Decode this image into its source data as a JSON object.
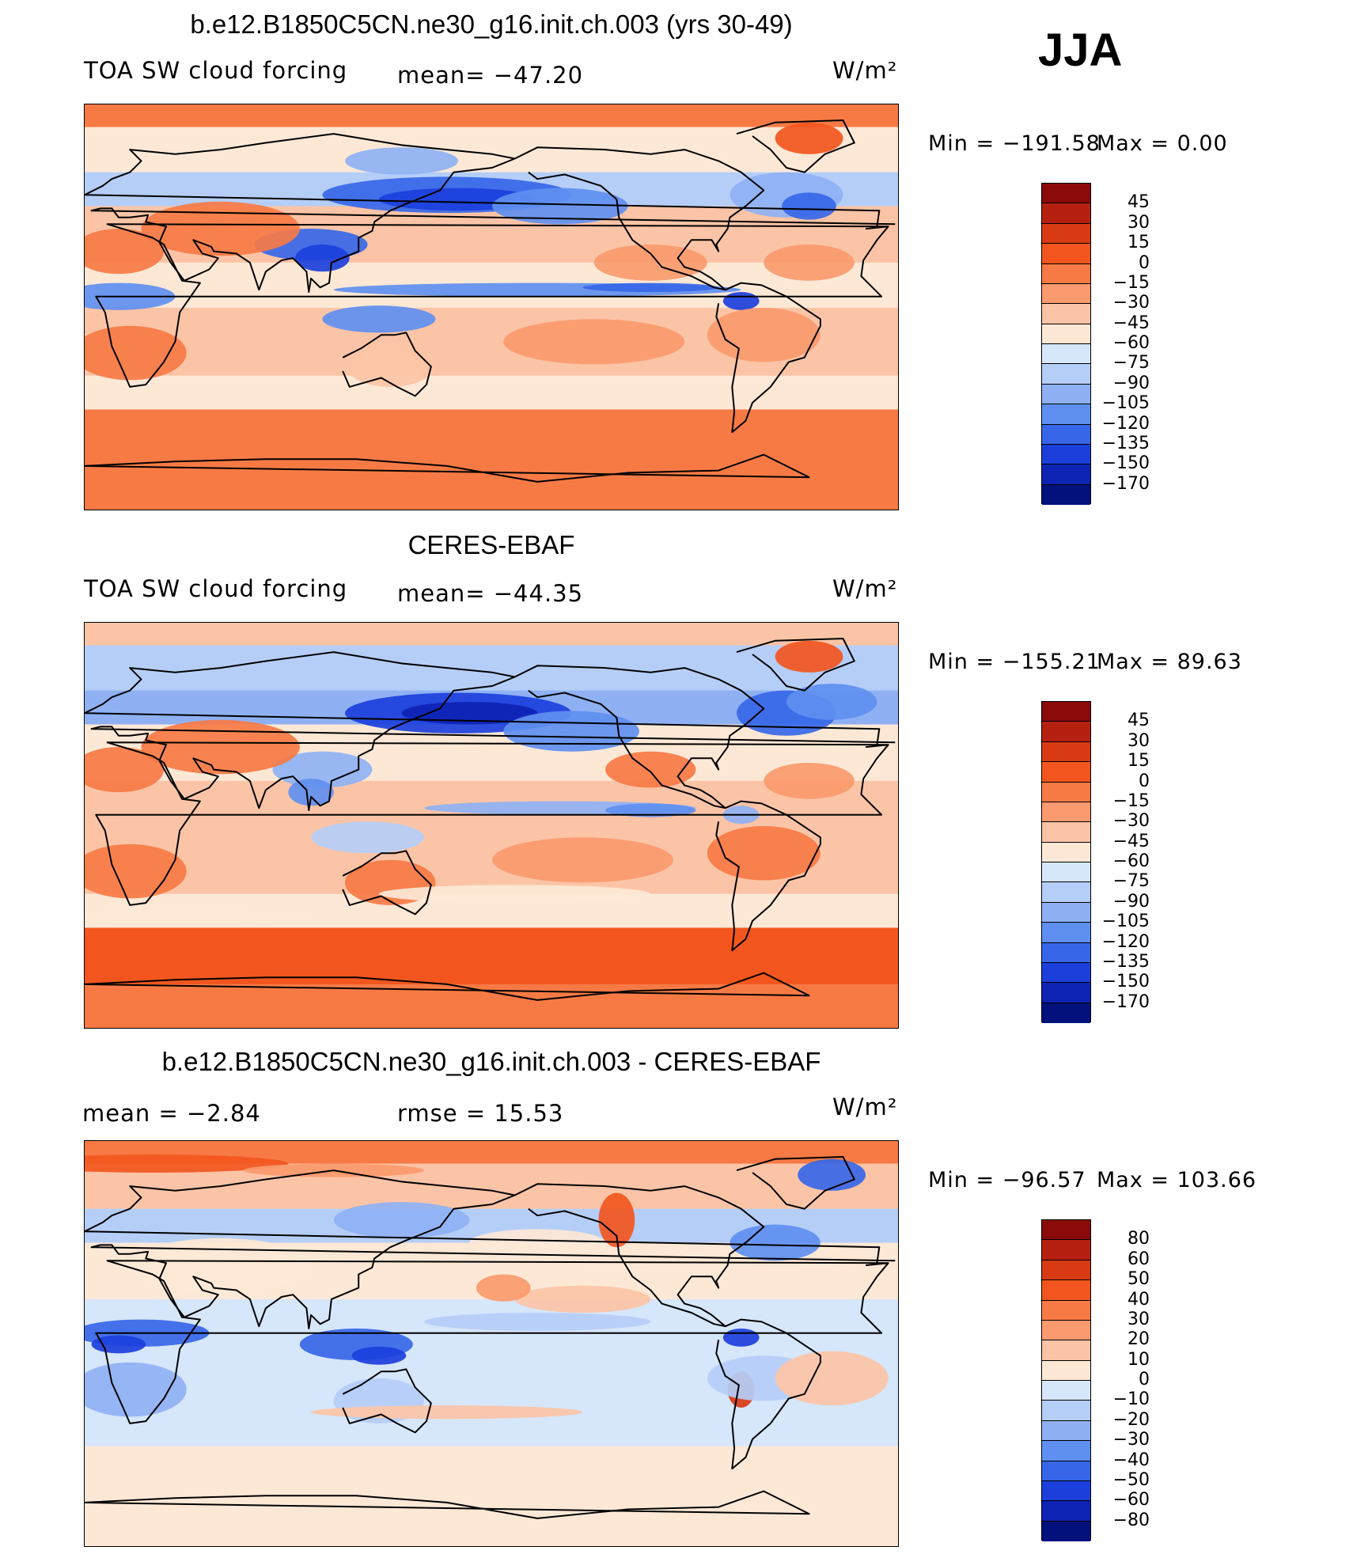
{
  "season": "JJA",
  "units": "W/m²",
  "panels": [
    {
      "title": "b.e12.B1850C5CN.ne30_g16.init.ch.003 (yrs 30-49)",
      "left_label": "TOA SW cloud forcing",
      "stat": "mean=  −47.20",
      "min_label": "Min  =  −191.58",
      "max_label": "Max  =      0.00",
      "colorbar": {
        "labels": [
          "45",
          "30",
          "15",
          "0",
          "−15",
          "−30",
          "−45",
          "−60",
          "−75",
          "−90",
          "−105",
          "−120",
          "−135",
          "−150",
          "−170"
        ],
        "colors": [
          "#8b0a0a",
          "#b52010",
          "#d83a14",
          "#f2561e",
          "#f77a45",
          "#fa9a6e",
          "#fcc4a6",
          "#fde8d6",
          "#d6e6fb",
          "#b5cef8",
          "#8fb1f4",
          "#5f8ff0",
          "#3767e8",
          "#1c3fdc",
          "#0d23b4",
          "#03117c"
        ]
      },
      "field": "model"
    },
    {
      "title": "CERES-EBAF",
      "left_label": "TOA SW cloud forcing",
      "stat": "mean=  −44.35",
      "min_label": "Min  =  −155.21",
      "max_label": "Max  =   89.63",
      "colorbar": {
        "labels": [
          "45",
          "30",
          "15",
          "0",
          "−15",
          "−30",
          "−45",
          "−60",
          "−75",
          "−90",
          "−105",
          "−120",
          "−135",
          "−150",
          "−170"
        ],
        "colors": [
          "#8b0a0a",
          "#b52010",
          "#d83a14",
          "#f2561e",
          "#f77a45",
          "#fa9a6e",
          "#fcc4a6",
          "#fde8d6",
          "#d6e6fb",
          "#b5cef8",
          "#8fb1f4",
          "#5f8ff0",
          "#3767e8",
          "#1c3fdc",
          "#0d23b4",
          "#03117c"
        ]
      },
      "field": "obs"
    },
    {
      "title": "b.e12.B1850C5CN.ne30_g16.init.ch.003 - CERES-EBAF",
      "left_label": "mean  =    −2.84",
      "stat": "rmse  =    15.53",
      "min_label": "Min  =  −96.57",
      "max_label": "Max  =  103.66",
      "colorbar": {
        "labels": [
          "80",
          "60",
          "50",
          "40",
          "30",
          "20",
          "10",
          "0",
          "−10",
          "−20",
          "−30",
          "−40",
          "−50",
          "−60",
          "−80"
        ],
        "colors": [
          "#8b0a0a",
          "#b52010",
          "#d83a14",
          "#f2561e",
          "#f77a45",
          "#fa9a6e",
          "#fcc4a6",
          "#fde8d6",
          "#d6e6fb",
          "#b5cef8",
          "#8fb1f4",
          "#5f8ff0",
          "#3767e8",
          "#1c3fdc",
          "#0d23b4",
          "#03117c"
        ]
      },
      "field": "diff"
    }
  ]
}
